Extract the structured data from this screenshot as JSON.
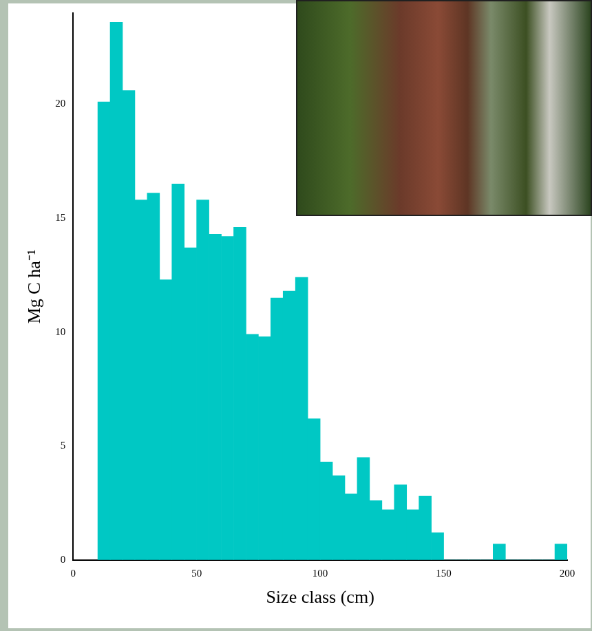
{
  "chart_data": {
    "type": "histogram",
    "x_label": "Size class (cm)",
    "y_label": "Mg C ha⁻¹",
    "bins": [
      10,
      15,
      20,
      25,
      30,
      35,
      40,
      45,
      50,
      55,
      60,
      65,
      70,
      75,
      80,
      85,
      90,
      95,
      100,
      105,
      110,
      115,
      120,
      125,
      130,
      135,
      140,
      145,
      150,
      155,
      160,
      165,
      170,
      175,
      180,
      185,
      190,
      195,
      200
    ],
    "values": [
      20.1,
      23.6,
      20.6,
      15.8,
      16.1,
      12.3,
      16.5,
      13.7,
      15.8,
      14.3,
      14.2,
      14.6,
      9.9,
      9.8,
      11.5,
      11.8,
      12.4,
      6.2,
      4.3,
      3.7,
      2.9,
      4.5,
      2.6,
      2.2,
      3.3,
      2.2,
      2.8,
      1.2,
      0,
      0,
      0,
      0,
      0.7,
      0,
      0,
      0,
      0,
      0.7
    ],
    "color": "#00c8c4",
    "xlim": [
      0,
      200
    ],
    "xticks": [
      0,
      50,
      100,
      150,
      200
    ],
    "ylim": [
      0,
      24
    ],
    "yticks": [
      0,
      5,
      10,
      15,
      20
    ],
    "grid": false
  }
}
